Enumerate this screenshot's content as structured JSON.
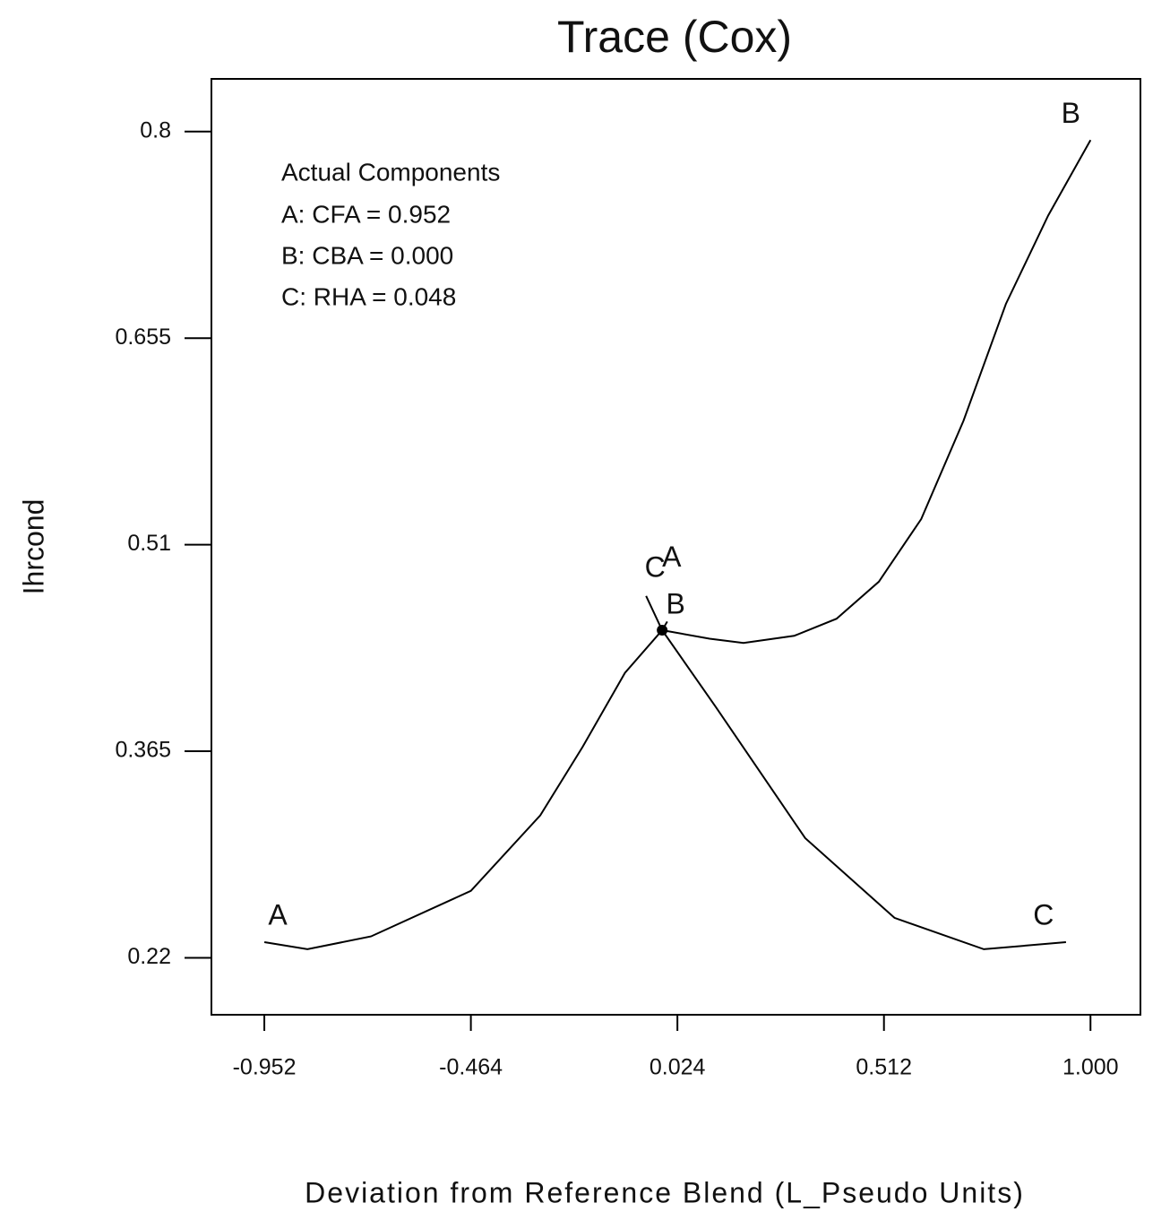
{
  "chart_data": {
    "type": "line",
    "title": "Trace (Cox)",
    "x_label": "Deviation from Reference Blend (L_Pseudo Units)",
    "y_label": "Ihrcond",
    "annotations": [
      "Actual Components",
      "A: CFA = 0.952",
      "B: CBA = 0.000",
      "C: RHA = 0.048"
    ],
    "xlim": [
      -1.077,
      1.118
    ],
    "ylim": [
      0.18,
      0.837
    ],
    "xticks": [
      -0.952,
      -0.464,
      0.024,
      0.512,
      {
        "value": 1,
        "label": "1.000"
      }
    ],
    "yticks": [
      0.22,
      0.365,
      0.51,
      0.655,
      0.8
    ],
    "color": "#000000",
    "reference_point": {
      "x": -0.012,
      "y": 0.45
    },
    "series": [
      {
        "name": "A",
        "x": [
          -0.952,
          -0.85,
          -0.7,
          -0.464,
          -0.3,
          -0.2,
          -0.1,
          -0.012,
          0.0
        ],
        "values": [
          0.231,
          0.226,
          0.235,
          0.267,
          0.32,
          0.368,
          0.42,
          0.45,
          0.456
        ]
      },
      {
        "name": "B",
        "x": [
          -0.012,
          0.1,
          0.18,
          0.3,
          0.4,
          0.5,
          0.6,
          0.7,
          0.8,
          0.9,
          1.0
        ],
        "values": [
          0.45,
          0.444,
          0.441,
          0.446,
          0.458,
          0.484,
          0.528,
          0.597,
          0.679,
          0.741,
          0.794
        ]
      },
      {
        "name": "C",
        "x": [
          -0.05,
          -0.012,
          0.115,
          0.326,
          0.537,
          0.748,
          0.942
        ],
        "values": [
          0.474,
          0.45,
          0.396,
          0.304,
          0.248,
          0.226,
          0.231
        ]
      }
    ]
  }
}
